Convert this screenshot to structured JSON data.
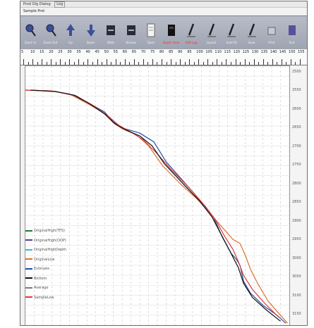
{
  "window": {
    "title": "Prod Dlg Dialog",
    "tab_label": "Log"
  },
  "menu": {
    "label": "Sample Prot"
  },
  "toolbar": {
    "buttons": [
      {
        "label": "Zoom In",
        "icon": "zoom-in-icon",
        "red": false
      },
      {
        "label": "Zoom Out",
        "icon": "zoom-out-icon",
        "red": false
      },
      {
        "label": "Up",
        "icon": "up-icon",
        "red": false
      },
      {
        "label": "Down",
        "icon": "down-icon",
        "red": false
      },
      {
        "label": "Wide",
        "icon": "widen-icon",
        "red": false
      },
      {
        "label": "Narrow",
        "icon": "narrow-icon",
        "red": false
      },
      {
        "label": "Open",
        "icon": "open-file-icon",
        "red": false
      },
      {
        "label": "Depth View",
        "icon": "depth-view-icon",
        "red": true
      },
      {
        "label": "Edit Log",
        "icon": "edit-log-icon",
        "red": true
      },
      {
        "label": "Layout",
        "icon": "layout-icon",
        "red": false
      },
      {
        "label": "Auto Fit",
        "icon": "auto-fit-icon",
        "red": false
      },
      {
        "label": "Save",
        "icon": "save-icon",
        "red": false
      },
      {
        "label": "Print",
        "icon": "print-icon",
        "red": false
      },
      {
        "label": "Exit",
        "icon": "exit-icon",
        "red": false
      }
    ]
  },
  "ruler": {
    "labels": [
      "5",
      "10",
      "15",
      "20",
      "25",
      "30",
      "35",
      "40",
      "45",
      "50",
      "55",
      "60",
      "65",
      "70",
      "75",
      "80",
      "85",
      "90",
      "95",
      "100",
      "105",
      "110",
      "115",
      "120",
      "125",
      "130",
      "135",
      "140",
      "145",
      "150",
      "155"
    ]
  },
  "depth_axis": {
    "labels": [
      "2500",
      "2550",
      "2600",
      "2650",
      "2700",
      "2750",
      "2800",
      "2850",
      "2900",
      "2950",
      "3000",
      "3050",
      "3100",
      "3150"
    ]
  },
  "legend": {
    "items": [
      {
        "name": "OriginalHigh(TFS)",
        "color": "#1a7a3a"
      },
      {
        "name": "OriginalHigh(OOP)",
        "color": "#5a3a9a"
      },
      {
        "name": "OriginalHighDepth",
        "color": "#3fb7d6"
      },
      {
        "name": "OriginalLow",
        "color": "#e07030"
      },
      {
        "name": "Estimate",
        "color": "#1f4fa8"
      },
      {
        "name": "Bottom",
        "color": "#111111"
      },
      {
        "name": "Average",
        "color": "#7a7a7a"
      },
      {
        "name": "SampleLow",
        "color": "#e03a3a"
      }
    ]
  },
  "chart_data": {
    "type": "line",
    "series": [
      {
        "name": "Estimate",
        "color": "#1f4fa8",
        "points": [
          [
            5,
            2560
          ],
          [
            20,
            2562
          ],
          [
            30,
            2570
          ],
          [
            40,
            2590
          ],
          [
            50,
            2615
          ],
          [
            55,
            2640
          ],
          [
            60,
            2655
          ],
          [
            70,
            2668
          ],
          [
            78,
            2690
          ],
          [
            85,
            2740
          ],
          [
            95,
            2790
          ],
          [
            105,
            2840
          ],
          [
            112,
            2880
          ],
          [
            117,
            2930
          ],
          [
            122,
            2970
          ],
          [
            125,
            2985
          ],
          [
            127,
            3000
          ],
          [
            129,
            3040
          ],
          [
            133,
            3070
          ],
          [
            140,
            3100
          ],
          [
            148,
            3125
          ],
          [
            153,
            3145
          ]
        ]
      },
      {
        "name": "OriginalLow",
        "color": "#e07030",
        "points": [
          [
            5,
            2560
          ],
          [
            20,
            2562
          ],
          [
            30,
            2570
          ],
          [
            40,
            2593
          ],
          [
            50,
            2618
          ],
          [
            55,
            2642
          ],
          [
            60,
            2657
          ],
          [
            68,
            2672
          ],
          [
            75,
            2700
          ],
          [
            83,
            2750
          ],
          [
            93,
            2795
          ],
          [
            103,
            2835
          ],
          [
            110,
            2870
          ],
          [
            117,
            2905
          ],
          [
            123,
            2935
          ],
          [
            127,
            2945
          ],
          [
            130,
            2975
          ],
          [
            133,
            3010
          ],
          [
            137,
            3045
          ],
          [
            143,
            3090
          ],
          [
            148,
            3115
          ],
          [
            154,
            3145
          ]
        ]
      },
      {
        "name": "SampleLow",
        "color": "#e03a3a",
        "points": [
          [
            5,
            2560
          ],
          [
            22,
            2563
          ],
          [
            34,
            2575
          ],
          [
            44,
            2600
          ],
          [
            52,
            2625
          ],
          [
            58,
            2648
          ],
          [
            66,
            2668
          ],
          [
            72,
            2685
          ],
          [
            80,
            2720
          ],
          [
            88,
            2760
          ],
          [
            98,
            2805
          ],
          [
            107,
            2850
          ],
          [
            113,
            2885
          ],
          [
            118,
            2925
          ],
          [
            123,
            2960
          ],
          [
            126,
            2990
          ],
          [
            129,
            3025
          ],
          [
            134,
            3060
          ],
          [
            141,
            3095
          ],
          [
            149,
            3130
          ]
        ]
      },
      {
        "name": "Bottom",
        "color": "#111111",
        "points": [
          [
            8,
            2560
          ],
          [
            22,
            2564
          ],
          [
            33,
            2573
          ],
          [
            42,
            2596
          ],
          [
            50,
            2620
          ],
          [
            56,
            2645
          ],
          [
            62,
            2660
          ],
          [
            70,
            2675
          ],
          [
            77,
            2700
          ],
          [
            84,
            2745
          ],
          [
            94,
            2792
          ],
          [
            104,
            2838
          ],
          [
            111,
            2878
          ],
          [
            116,
            2920
          ],
          [
            121,
            2962
          ],
          [
            124,
            2988
          ],
          [
            126,
            3005
          ],
          [
            129,
            3045
          ],
          [
            134,
            3080
          ],
          [
            142,
            3112
          ],
          [
            150,
            3140
          ]
        ]
      }
    ]
  }
}
